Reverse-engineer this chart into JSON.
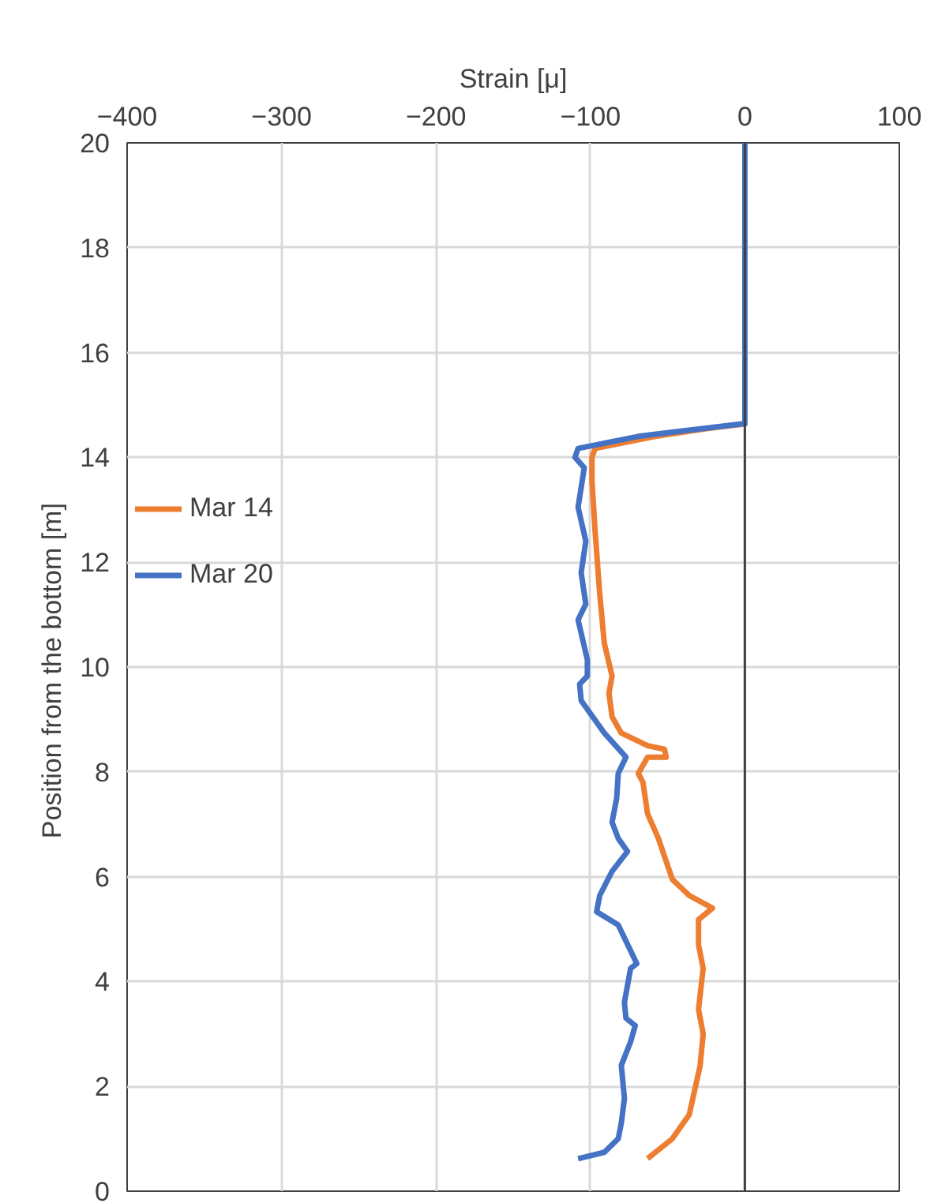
{
  "chart_data": {
    "type": "line",
    "xlabel": "Strain [μ]",
    "ylabel": "Position from the bottom  [m]",
    "xlim": [
      -400,
      100
    ],
    "ylim": [
      0,
      20
    ],
    "xticks": [
      {
        "value": -400,
        "label": "−400"
      },
      {
        "value": -300,
        "label": "−300"
      },
      {
        "value": -200,
        "label": "−200"
      },
      {
        "value": -100,
        "label": "−100"
      },
      0,
      100
    ],
    "yticks": [
      0,
      2,
      4,
      6,
      8,
      10,
      12,
      14,
      16,
      18,
      20
    ],
    "grid": true,
    "legend": "left",
    "line_style": "solid",
    "marker": "none",
    "ref_lines": [
      {
        "axis": "x",
        "value": 0,
        "color": "#404040"
      }
    ],
    "series": [
      {
        "name": "Mar 14",
        "color": "#ed7d31",
        "x": [
          -63,
          -47,
          -36,
          -29,
          -27,
          -30,
          -27,
          -30,
          -30,
          -21,
          -36,
          -47,
          -56,
          -63,
          -66,
          -69,
          -63,
          -51,
          -52,
          -63,
          -80,
          -86,
          -88,
          -86,
          -91,
          -94,
          -97,
          -99,
          -99,
          -97,
          -58,
          -24,
          0
        ],
        "values": [
          0.62,
          1.0,
          1.46,
          2.39,
          3.0,
          3.47,
          4.25,
          4.7,
          5.18,
          5.4,
          5.64,
          5.95,
          6.73,
          7.2,
          7.8,
          7.97,
          8.28,
          8.28,
          8.43,
          8.5,
          8.74,
          9.05,
          9.5,
          9.83,
          10.45,
          11.4,
          12.6,
          13.55,
          14.0,
          14.17,
          14.4,
          14.55,
          14.64
        ]
      },
      {
        "name": "Mar 20",
        "color": "#4472c4",
        "x": [
          -108,
          -91,
          -82,
          -80,
          -78,
          -80,
          -74,
          -71,
          -77,
          -78,
          -74,
          -70,
          -82,
          -96,
          -94,
          -86,
          -76,
          -82,
          -86,
          -83,
          -82,
          -77,
          -91,
          -106,
          -107,
          -102,
          -102,
          -108,
          -103,
          -106,
          -103,
          -108,
          -104,
          -110,
          -108,
          -69,
          -47,
          -2,
          0,
          0
        ],
        "values": [
          0.62,
          0.74,
          1.0,
          1.3,
          1.77,
          2.4,
          2.85,
          3.16,
          3.3,
          3.6,
          4.25,
          4.34,
          5.08,
          5.33,
          5.64,
          6.1,
          6.48,
          6.73,
          7.04,
          7.5,
          7.97,
          8.28,
          8.74,
          9.36,
          9.67,
          9.83,
          10.14,
          10.9,
          11.2,
          11.8,
          12.4,
          13.05,
          13.8,
          14.0,
          14.17,
          14.4,
          14.48,
          14.64,
          14.64,
          20
        ]
      }
    ]
  }
}
